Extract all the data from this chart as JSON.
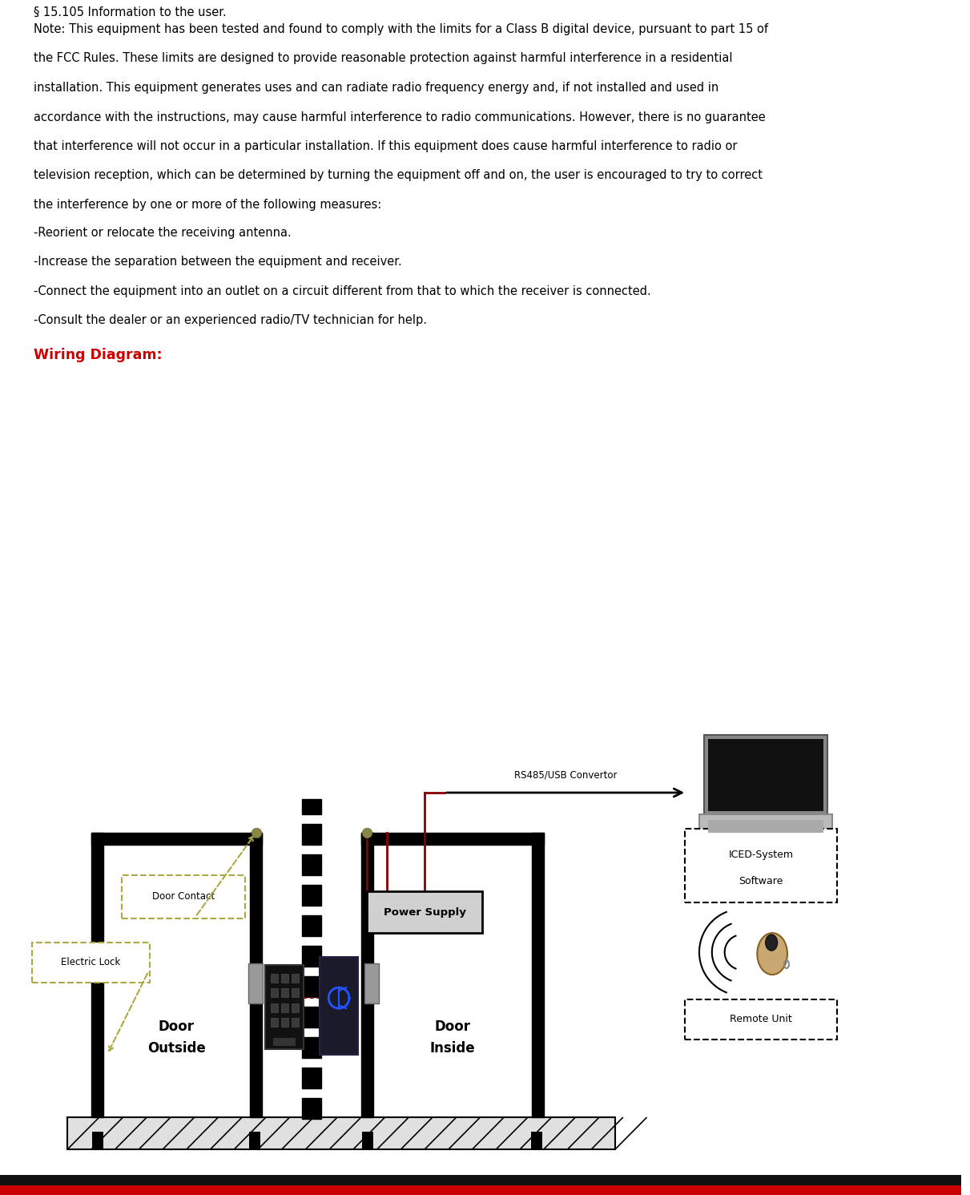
{
  "title_text": "§ 15.105 Information to the user.",
  "para_lines": [
    "Note: This equipment has been tested and found to comply with the limits for a Class B digital device, pursuant to part 15 of",
    "the FCC Rules. These limits are designed to provide reasonable protection against harmful interference in a residential",
    "installation. This equipment generates uses and can radiate radio frequency energy and, if not installed and used in",
    "accordance with the instructions, may cause harmful interference to radio communications. However, there is no guarantee",
    "that interference will not occur in a particular installation. If this equipment does cause harmful interference to radio or",
    "television reception, which can be determined by turning the equipment off and on, the user is encouraged to try to correct",
    "the interference by one or more of the following measures:"
  ],
  "bullets": [
    "-Reorient or relocate the receiving antenna.",
    "-Increase the separation between the equipment and receiver.",
    "-Connect the equipment into an outlet on a circuit different from that to which the receiver is connected.",
    "-Consult the dealer or an experienced radio/TV technician for help."
  ],
  "wiring_diagram_label": "Wiring Diagram:",
  "bg_color": "#ffffff",
  "text_color": "#000000",
  "red_color": "#cc0000",
  "footer_dark_color": "#111111",
  "footer_bar_color": "#cc0000",
  "dashed_box_color": "#aaaa44",
  "wire_color": "#880000",
  "wall_color": "#000000",
  "gray_handle": "#999999",
  "keypad_color": "#111111",
  "reader_color": "#1a1a2e",
  "dot_color": "#888844"
}
